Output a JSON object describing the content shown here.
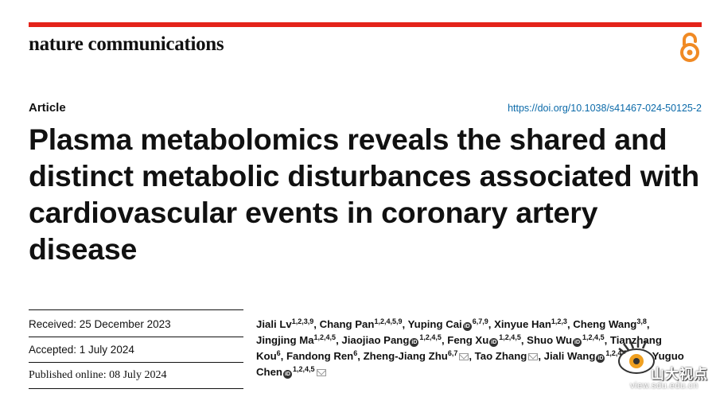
{
  "journal": "nature communications",
  "article_type": "Article",
  "doi": "https://doi.org/10.1038/s41467-024-50125-2",
  "title": "Plasma metabolomics reveals the shared and distinct metabolic disturbances associated with cardiovascular events in coronary artery disease",
  "dates": {
    "received": "Received: 25 December 2023",
    "accepted": "Accepted: 1 July 2024",
    "published": "Published online: 08 July 2024"
  },
  "authors": [
    {
      "name": "Jiali Lv",
      "aff": "1,2,3,9",
      "orcid": false,
      "email": false,
      "sep": ", "
    },
    {
      "name": "Chang Pan",
      "aff": "1,2,4,5,9",
      "orcid": false,
      "email": false,
      "sep": ", "
    },
    {
      "name": "Yuping Cai",
      "aff": "6,7,9",
      "orcid": true,
      "email": false,
      "sep": ", "
    },
    {
      "name": "Xinyue Han",
      "aff": "1,2,3",
      "orcid": false,
      "email": false,
      "sep": ", "
    },
    {
      "name": "Cheng Wang",
      "aff": "3,8",
      "orcid": false,
      "email": false,
      "sep": ", "
    },
    {
      "name": "Jingjing Ma",
      "aff": "1,2,4,5",
      "orcid": false,
      "email": false,
      "sep": ", "
    },
    {
      "name": "Jiaojiao Pang",
      "aff": "1,2,4,5",
      "orcid": true,
      "email": false,
      "sep": ", "
    },
    {
      "name": "Feng Xu",
      "aff": "1,2,4,5",
      "orcid": true,
      "email": false,
      "sep": ", "
    },
    {
      "name": "Shuo Wu",
      "aff": "1,2,4,5",
      "orcid": true,
      "email": false,
      "sep": ", "
    },
    {
      "name": "Tianzhang Kou",
      "aff": "6",
      "orcid": false,
      "email": false,
      "sep": ", "
    },
    {
      "name": "Fandong Ren",
      "aff": "6",
      "orcid": false,
      "email": false,
      "sep": ", "
    },
    {
      "name": "Zheng-Jiang Zhu",
      "aff": "6,7",
      "orcid": false,
      "email": true,
      "sep": ", "
    },
    {
      "name": "Tao Zhang",
      "aff": "",
      "orcid": false,
      "email": true,
      "sep": ", "
    },
    {
      "name": "Jiali Wang",
      "aff": "1,2,4,5",
      "orcid": true,
      "email": true,
      "sep": " & "
    },
    {
      "name": "Yuguo Chen",
      "aff": "1,2,4,5",
      "orcid": true,
      "email": true,
      "sep": ""
    }
  ],
  "watermark": {
    "text": "山大视点",
    "url": "view.sdu.edu.cn"
  },
  "colors": {
    "accent": "#e4231a",
    "link": "#0b6aa9",
    "open_access": "#f08a24"
  }
}
